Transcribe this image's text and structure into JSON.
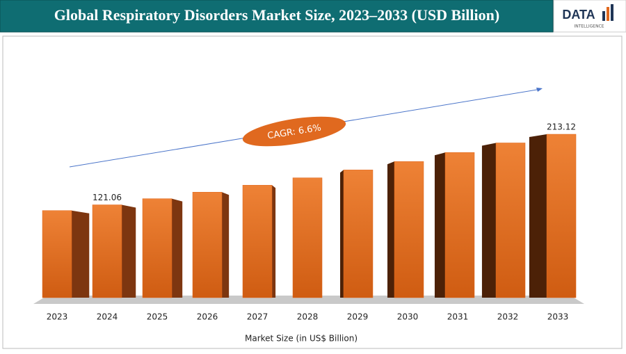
{
  "chart_data": {
    "type": "bar3d",
    "title": "Global Respiratory Disorders Market Size, 2023–2033 (USD Billion)",
    "logo": {
      "text": "DATA",
      "subtext": "INTELLIGENCE"
    },
    "x_label": "Market Size (in US$ Billion)",
    "annotation": "CAGR: 6.6%",
    "categories": [
      "2023",
      "2024",
      "2025",
      "2026",
      "2027",
      "2028",
      "2029",
      "2030",
      "2031",
      "2032",
      "2033"
    ],
    "values": [
      113.6,
      121.06,
      129.1,
      137.6,
      146.7,
      156.3,
      166.6,
      177.6,
      189.3,
      201.8,
      213.12
    ],
    "value_labels": [
      null,
      "121.06",
      null,
      null,
      null,
      null,
      null,
      null,
      null,
      null,
      "213.12"
    ],
    "color": "#e0691f"
  }
}
